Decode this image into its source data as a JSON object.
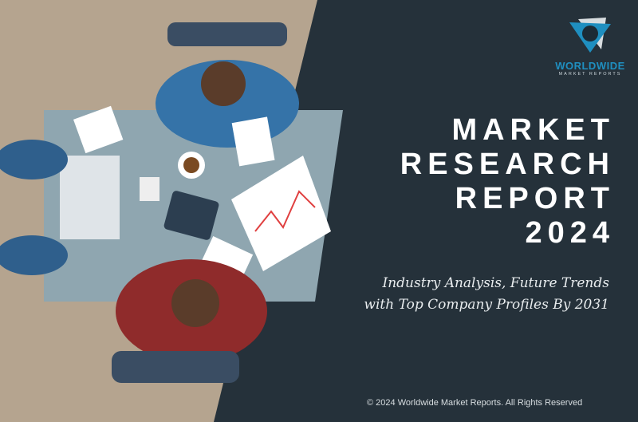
{
  "logo": {
    "word": "WORLDWIDE",
    "sub": "MARKET REPORTS"
  },
  "title": {
    "line1": "MARKET",
    "line2": "RESEARCH",
    "line3": "REPORT",
    "line4": "2024"
  },
  "subtitle": {
    "line1": "Industry Analysis, Future Trends",
    "line2": "with Top Company Profiles By 2031"
  },
  "footer": "© 2024 Worldwide Market Reports. All Rights Reserved",
  "colors": {
    "background": "#25313a",
    "left_panel": "#b5a48f",
    "brand": "#1f8fc0"
  }
}
